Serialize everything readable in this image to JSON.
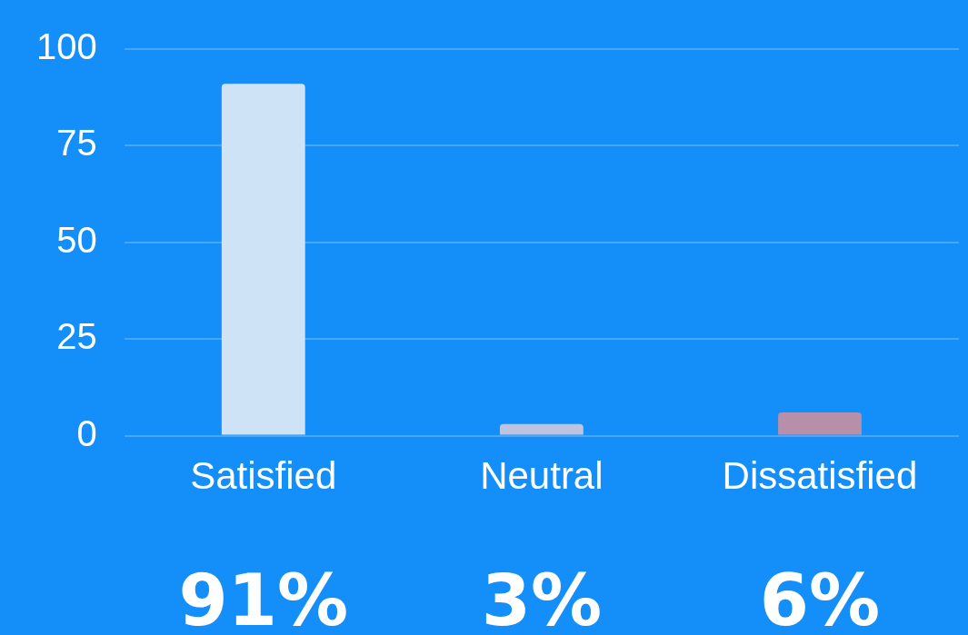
{
  "chart_data": {
    "type": "bar",
    "categories": [
      "Satisfied",
      "Neutral",
      "Dissatisfied"
    ],
    "values": [
      91,
      3,
      6
    ],
    "colors": [
      "#cfe3f7",
      "#c0c3e0",
      "#b590a8"
    ],
    "value_labels": [
      "91%",
      "3%",
      "6%"
    ],
    "ylim": [
      0,
      100
    ],
    "yticks": [
      0,
      25,
      50,
      75,
      100
    ],
    "grid": "y",
    "legend": false
  }
}
